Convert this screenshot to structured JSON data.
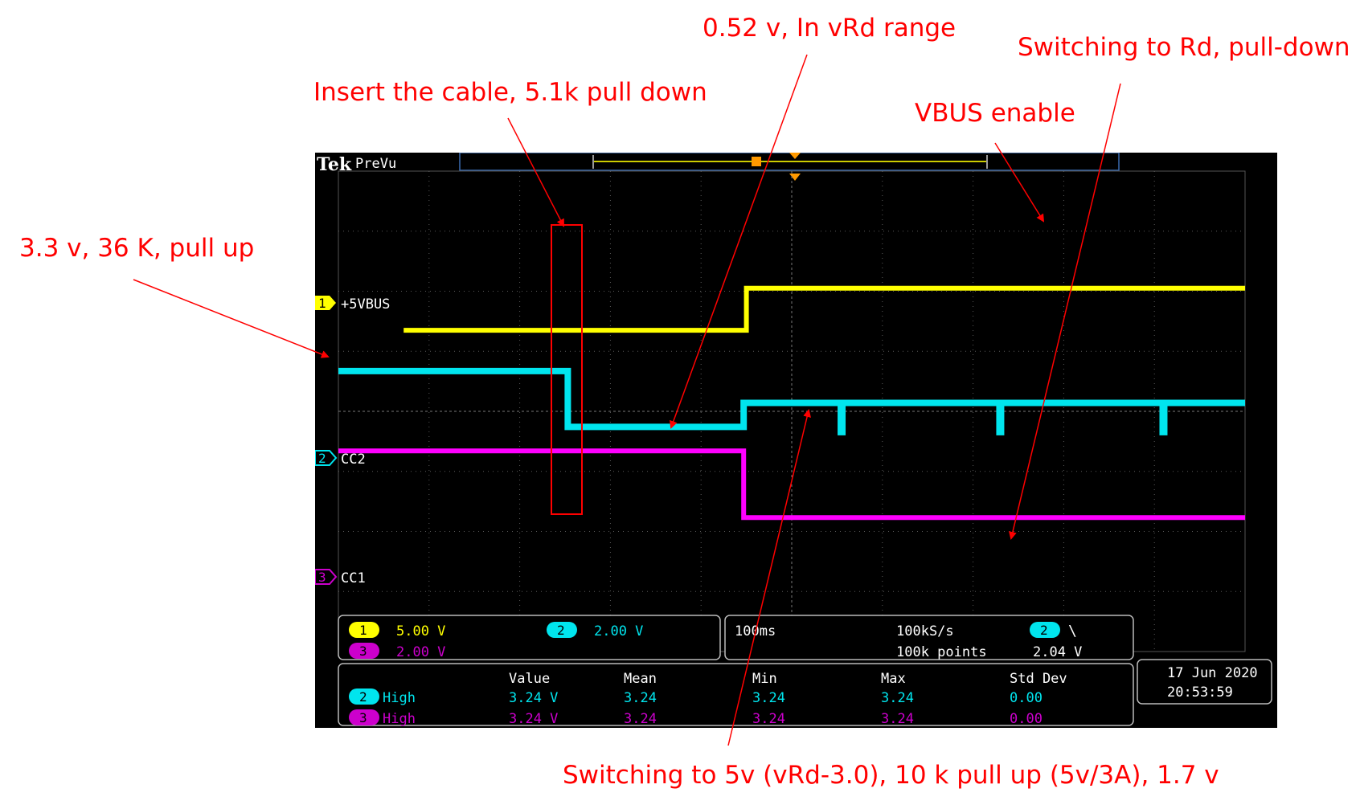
{
  "annotations": {
    "pull_up": "3.3 v,  36 K, pull up",
    "insert": "Insert the cable, 5.1k pull down",
    "vrd": "0.52 v, In vRd range",
    "rd": "Switching to Rd, pull-down",
    "vbus": "VBUS enable",
    "switch5v": "Switching to 5v (vRd-3.0), 10 k pull up (5v/3A), 1.7 v"
  },
  "scope": {
    "brand": "Tek",
    "mode": "PreVu",
    "channels": [
      {
        "num": "1",
        "label": "+5VBUS",
        "scale": "5.00 V",
        "color": "#ffff00"
      },
      {
        "num": "2",
        "label": "CC2",
        "scale": "2.00 V",
        "color": "#00e5ee"
      },
      {
        "num": "3",
        "label": "CC1",
        "scale": "2.00 V",
        "color": "#ff00ff"
      }
    ],
    "timebase": "100ms",
    "sample_rate": "100kS/s",
    "record_length": "100k points",
    "trigger": {
      "channel": "2",
      "level": "2.04 V",
      "slope_icon": "falling-slope-icon",
      "slope_glyph": "\\"
    },
    "measurements": {
      "headers": [
        "Value",
        "Mean",
        "Min",
        "Max",
        "Std Dev"
      ],
      "rows": [
        {
          "channel": "2",
          "name": "High",
          "value": "3.24 V",
          "mean": "3.24",
          "min": "3.24",
          "max": "3.24",
          "std": "0.00",
          "color": "#00e5ee"
        },
        {
          "channel": "3",
          "name": "High",
          "value": "3.24 V",
          "mean": "3.24",
          "min": "3.24",
          "max": "3.24",
          "std": "0.00",
          "color": "#cc00cc"
        }
      ]
    },
    "date": "17 Jun  2020",
    "time": "20:53:59"
  },
  "chart_data": {
    "type": "line",
    "title": "",
    "xlabel": "",
    "ylabel": "",
    "grid": true,
    "x_divisions": 10,
    "y_divisions": 8,
    "x_unit": "div",
    "y_unit": "div",
    "xlim": [
      0,
      10
    ],
    "ylim": [
      -4,
      4
    ],
    "series": [
      {
        "name": "+5VBUS",
        "color": "#ffff00",
        "x": [
          0.72,
          4.5,
          4.5,
          10.0
        ],
        "y": [
          1.35,
          1.35,
          2.05,
          2.05
        ]
      },
      {
        "name": "CC2",
        "color": "#00e5ee",
        "x": [
          0.0,
          2.53,
          2.53,
          4.47,
          4.47,
          10.0
        ],
        "y": [
          0.67,
          0.67,
          -0.26,
          -0.26,
          0.14,
          0.14
        ],
        "dips": [
          {
            "x": 5.55,
            "y": -0.4
          },
          {
            "x": 7.3,
            "y": -0.4
          },
          {
            "x": 9.1,
            "y": -0.4
          }
        ]
      },
      {
        "name": "CC1",
        "color": "#ff00ff",
        "x": [
          0.0,
          4.47,
          4.47,
          10.0
        ],
        "y": [
          -0.66,
          -0.66,
          -1.77,
          -1.77
        ]
      }
    ]
  }
}
